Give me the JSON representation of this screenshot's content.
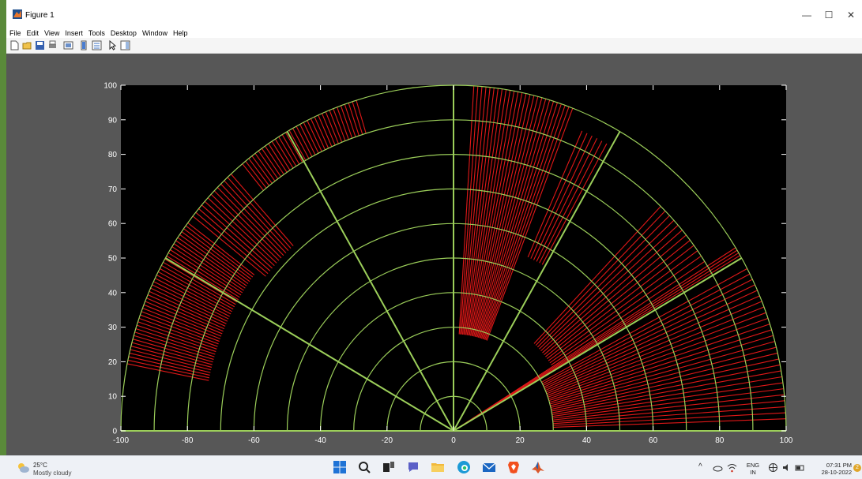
{
  "window": {
    "title": "Figure 1",
    "controls": {
      "minimize": "—",
      "maximize": "☐",
      "close": "✕"
    }
  },
  "menu": [
    "File",
    "Edit",
    "View",
    "Insert",
    "Tools",
    "Desktop",
    "Window",
    "Help"
  ],
  "toolbar": {
    "icons": [
      "new-figure-icon",
      "open-file-icon",
      "save-icon",
      "print-icon",
      "link-plot-icon",
      "insert-colorbar-icon",
      "insert-legend-icon",
      "edit-plot-icon",
      "property-inspector-icon"
    ]
  },
  "colors": {
    "plot_background": "#000000",
    "figure_background": "#575757",
    "grid": "#9ccf5a",
    "trace": "#e01818",
    "axis_text": "#ffffff"
  },
  "chart_data": {
    "type": "polar-sweep",
    "title": "",
    "xlabel": "",
    "ylabel": "",
    "xlim": [
      -100,
      100
    ],
    "ylim": [
      0,
      100
    ],
    "xticks": [
      -100,
      -80,
      -60,
      -40,
      -20,
      0,
      20,
      40,
      60,
      80,
      100
    ],
    "yticks": [
      0,
      10,
      20,
      30,
      40,
      50,
      60,
      70,
      80,
      90,
      100
    ],
    "range_rings": [
      10,
      20,
      30,
      40,
      50,
      60,
      70,
      80,
      90,
      100
    ],
    "radial_lines_deg": [
      0,
      30,
      60,
      90,
      120,
      150,
      180
    ],
    "grid": true,
    "sweep_groups": [
      {
        "angle_from_deg": 2,
        "angle_to_deg": 28,
        "r_inner": 30,
        "r_outer": 100,
        "step_deg": 1
      },
      {
        "angle_from_deg": 30,
        "angle_to_deg": 32,
        "r_inner": 0,
        "r_outer": 100,
        "step_deg": 0.5
      },
      {
        "angle_from_deg": 33,
        "angle_to_deg": 47,
        "r_inner": 35,
        "r_outer": 90,
        "step_deg": 1.2
      },
      {
        "angle_from_deg": 61,
        "angle_to_deg": 66,
        "r_inner": 55,
        "r_outer": 95,
        "step_deg": 1
      },
      {
        "angle_from_deg": 69,
        "angle_to_deg": 87,
        "r_inner": 28,
        "r_outer": 100,
        "step_deg": 0.7
      },
      {
        "angle_from_deg": 107,
        "angle_to_deg": 130,
        "r_inner": 90,
        "r_outer": 100,
        "step_deg": 0.7
      },
      {
        "angle_from_deg": 132,
        "angle_to_deg": 142,
        "r_inner": 72,
        "r_outer": 100,
        "step_deg": 0.8
      },
      {
        "angle_from_deg": 143,
        "angle_to_deg": 169,
        "r_inner": 75,
        "r_outer": 100,
        "step_deg": 0.6
      }
    ]
  },
  "taskbar": {
    "weather": {
      "temp": "25°C",
      "desc": "Mostly cloudy"
    },
    "apps": [
      "windows-start-icon",
      "search-icon",
      "task-view-icon",
      "chat-icon",
      "file-explorer-icon",
      "edge-browser-icon",
      "mail-icon",
      "brave-browser-icon",
      "matlab-icon"
    ],
    "tray": {
      "lang": "ENG",
      "region": "IN",
      "time": "07:31 PM",
      "date": "28-10-2022",
      "badge": "2"
    }
  }
}
